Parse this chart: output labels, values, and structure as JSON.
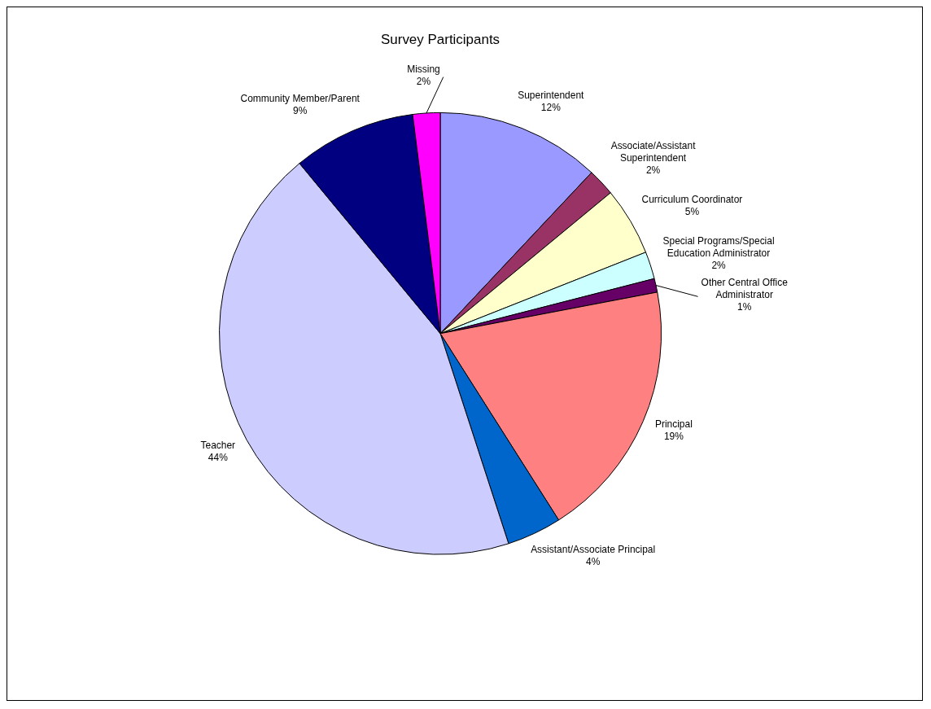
{
  "chart_data": {
    "type": "pie",
    "title": "Survey Participants",
    "categories": [
      "Superintendent",
      "Associate/Assistant Superintendent",
      "Curriculum Coordinator",
      "Special Programs/Special Education Administrator",
      "Other Central Office Administrator",
      "Principal",
      "Assistant/Associate Principal",
      "Teacher",
      "Community Member/Parent",
      "Missing"
    ],
    "values": [
      12,
      2,
      5,
      2,
      1,
      19,
      4,
      44,
      9,
      2
    ],
    "colors": [
      "#9999ff",
      "#993366",
      "#ffffcc",
      "#ccffff",
      "#660066",
      "#ff8080",
      "#0066cc",
      "#ccccff",
      "#000080",
      "#ff00ff"
    ],
    "value_labels": [
      "12%",
      "2%",
      "5%",
      "2%",
      "1%",
      "19%",
      "4%",
      "44%",
      "9%",
      "2%"
    ],
    "legend": false
  }
}
